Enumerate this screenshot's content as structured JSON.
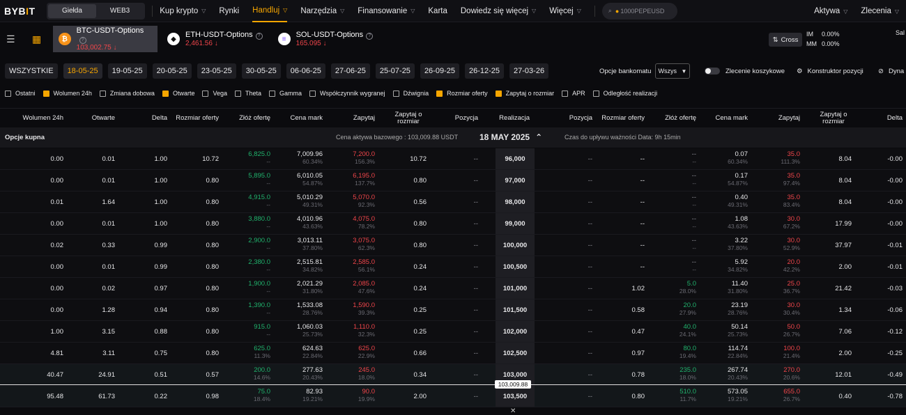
{
  "nav": {
    "logo_a": "BYB",
    "logo_i": "I",
    "logo_t": "T",
    "seg": [
      "Giełda",
      "WEB3"
    ],
    "items": [
      "Kup krypto",
      "Rynki",
      "Handluj",
      "Narzędzia",
      "Finansowanie",
      "Karta",
      "Dowiedz się więcej",
      "Więcej"
    ],
    "search": "1000PEPEUSD",
    "right": [
      "Aktywa",
      "Zlecenia"
    ]
  },
  "assets": [
    {
      "name": "BTC-USDT-Options",
      "price": "103,002.75",
      "icon": "₿",
      "color": "#f7931a"
    },
    {
      "name": "ETH-USDT-Options",
      "price": "2,461.56",
      "icon": "◆",
      "color": "#ffffff"
    },
    {
      "name": "SOL-USDT-Options",
      "price": "165.095",
      "icon": "≡",
      "color": "#ffffff"
    }
  ],
  "account": {
    "cross": "Cross",
    "im": "IM",
    "im_val": "0.00%",
    "mm": "MM",
    "mm_val": "0.00%",
    "right": "Sal"
  },
  "dates": [
    "WSZYSTKIE",
    "18-05-25",
    "19-05-25",
    "20-05-25",
    "23-05-25",
    "30-05-25",
    "06-06-25",
    "27-06-25",
    "25-07-25",
    "26-09-25",
    "26-12-25",
    "27-03-26"
  ],
  "bank": {
    "label": "Opcje bankomatu",
    "value": "Wszys"
  },
  "controls": {
    "basket": "Zlecenie koszykowe",
    "builder": "Konstruktor pozycji",
    "dyna": "Dyna"
  },
  "checkboxes": [
    {
      "label": "Ostatni",
      "on": false
    },
    {
      "label": "Wolumen 24h",
      "on": true
    },
    {
      "label": "Zmiana dobowa",
      "on": false
    },
    {
      "label": "Otwarte",
      "on": true
    },
    {
      "label": "Vega",
      "on": false
    },
    {
      "label": "Theta",
      "on": false
    },
    {
      "label": "Gamma",
      "on": false
    },
    {
      "label": "Współczynnik wygranej",
      "on": false
    },
    {
      "label": "Dźwignia",
      "on": false
    },
    {
      "label": "Rozmiar oferty",
      "on": true
    },
    {
      "label": "Zapytaj o rozmiar",
      "on": true
    },
    {
      "label": "APR",
      "on": false
    },
    {
      "label": "Odległość realizacji",
      "on": false
    }
  ],
  "headers": {
    "vol": "Wolumen 24h",
    "oi": "Otwarte",
    "delta": "Delta",
    "bidsize": "Rozmiar oferty",
    "bid": "Złóż ofertę",
    "mark": "Cena mark",
    "ask": "Zapytaj",
    "asksize": "Zapytaj o rozmiar",
    "pos": "Pozycja",
    "strike": "Realizacja",
    "ppos": "Pozycja",
    "pbidsize": "Rozmiar oferty",
    "pbid": "Złóż ofertę",
    "pmark": "Cena mark",
    "pask": "Zapytaj",
    "pasksize": "Zapytaj o rozmiar",
    "pdelta": "Delta"
  },
  "section": {
    "calls": "Opcje kupna",
    "underlying": "Cena aktywa bazowego : 103,009.88 USDT",
    "date": "18 MAY 2025",
    "expiry": "Czas do upływu ważności Data:  9h 15min"
  },
  "current_price": "103,009.88",
  "rows": [
    {
      "vol": "0.00",
      "oi": "0.01",
      "delta": "1.00",
      "bidsize": "10.72",
      "bid": "6,825.0",
      "bidiv": "--",
      "mark": "7,009.96",
      "markiv": "60.34%",
      "ask": "7,200.0",
      "askiv": "156.3%",
      "asksize": "10.72",
      "pos": "--",
      "strike": "96,000",
      "ppos": "--",
      "pbidsize": "--",
      "pbid": "--",
      "pbidiv": "--",
      "pmark": "0.07",
      "pmarkiv": "60.34%",
      "pask": "35.0",
      "paskiv": "111.3%",
      "pasksize": "8.04",
      "pdelta": "-0.00"
    },
    {
      "vol": "0.00",
      "oi": "0.01",
      "delta": "1.00",
      "bidsize": "0.80",
      "bid": "5,895.0",
      "bidiv": "--",
      "mark": "6,010.05",
      "markiv": "54.87%",
      "ask": "6,195.0",
      "askiv": "137.7%",
      "asksize": "0.80",
      "pos": "--",
      "strike": "97,000",
      "ppos": "--",
      "pbidsize": "--",
      "pbid": "--",
      "pbidiv": "--",
      "pmark": "0.17",
      "pmarkiv": "54.87%",
      "pask": "35.0",
      "paskiv": "97.4%",
      "pasksize": "8.04",
      "pdelta": "-0.00"
    },
    {
      "vol": "0.01",
      "oi": "1.64",
      "delta": "1.00",
      "bidsize": "0.80",
      "bid": "4,915.0",
      "bidiv": "--",
      "mark": "5,010.29",
      "markiv": "49.31%",
      "ask": "5,070.0",
      "askiv": "92.3%",
      "asksize": "0.56",
      "pos": "--",
      "strike": "98,000",
      "ppos": "--",
      "pbidsize": "--",
      "pbid": "--",
      "pbidiv": "--",
      "pmark": "0.40",
      "pmarkiv": "49.31%",
      "pask": "35.0",
      "paskiv": "83.4%",
      "pasksize": "8.04",
      "pdelta": "-0.00"
    },
    {
      "vol": "0.00",
      "oi": "0.01",
      "delta": "1.00",
      "bidsize": "0.80",
      "bid": "3,880.0",
      "bidiv": "--",
      "mark": "4,010.96",
      "markiv": "43.63%",
      "ask": "4,075.0",
      "askiv": "78.2%",
      "asksize": "0.80",
      "pos": "--",
      "strike": "99,000",
      "ppos": "--",
      "pbidsize": "--",
      "pbid": "--",
      "pbidiv": "--",
      "pmark": "1.08",
      "pmarkiv": "43.63%",
      "pask": "30.0",
      "paskiv": "67.2%",
      "pasksize": "17.99",
      "pdelta": "-0.00"
    },
    {
      "vol": "0.02",
      "oi": "0.33",
      "delta": "0.99",
      "bidsize": "0.80",
      "bid": "2,900.0",
      "bidiv": "--",
      "mark": "3,013.11",
      "markiv": "37.80%",
      "ask": "3,075.0",
      "askiv": "62.3%",
      "asksize": "0.80",
      "pos": "--",
      "strike": "100,000",
      "ppos": "--",
      "pbidsize": "--",
      "pbid": "--",
      "pbidiv": "--",
      "pmark": "3.22",
      "pmarkiv": "37.80%",
      "pask": "30.0",
      "paskiv": "52.9%",
      "pasksize": "37.97",
      "pdelta": "-0.01"
    },
    {
      "vol": "0.00",
      "oi": "0.01",
      "delta": "0.99",
      "bidsize": "0.80",
      "bid": "2,380.0",
      "bidiv": "--",
      "mark": "2,515.81",
      "markiv": "34.82%",
      "ask": "2,585.0",
      "askiv": "56.1%",
      "asksize": "0.24",
      "pos": "--",
      "strike": "100,500",
      "ppos": "--",
      "pbidsize": "--",
      "pbid": "--",
      "pbidiv": "--",
      "pmark": "5.92",
      "pmarkiv": "34.82%",
      "pask": "20.0",
      "paskiv": "42.2%",
      "pasksize": "2.00",
      "pdelta": "-0.01"
    },
    {
      "vol": "0.00",
      "oi": "0.02",
      "delta": "0.97",
      "bidsize": "0.80",
      "bid": "1,900.0",
      "bidiv": "--",
      "mark": "2,021.29",
      "markiv": "31.80%",
      "ask": "2,085.0",
      "askiv": "47.6%",
      "asksize": "0.24",
      "pos": "--",
      "strike": "101,000",
      "ppos": "--",
      "pbidsize": "1.02",
      "pbid": "5.0",
      "pbidiv": "28.0%",
      "pmark": "11.40",
      "pmarkiv": "31.80%",
      "pask": "25.0",
      "paskiv": "36.7%",
      "pasksize": "21.42",
      "pdelta": "-0.03"
    },
    {
      "vol": "0.00",
      "oi": "1.28",
      "delta": "0.94",
      "bidsize": "0.80",
      "bid": "1,390.0",
      "bidiv": "--",
      "mark": "1,533.08",
      "markiv": "28.76%",
      "ask": "1,590.0",
      "askiv": "39.3%",
      "asksize": "0.25",
      "pos": "--",
      "strike": "101,500",
      "ppos": "--",
      "pbidsize": "0.58",
      "pbid": "20.0",
      "pbidiv": "27.9%",
      "pmark": "23.19",
      "pmarkiv": "28.76%",
      "pask": "30.0",
      "paskiv": "30.4%",
      "pasksize": "1.34",
      "pdelta": "-0.06"
    },
    {
      "vol": "1.00",
      "oi": "3.15",
      "delta": "0.88",
      "bidsize": "0.80",
      "bid": "915.0",
      "bidiv": "--",
      "mark": "1,060.03",
      "markiv": "25.73%",
      "ask": "1,110.0",
      "askiv": "32.3%",
      "asksize": "0.25",
      "pos": "--",
      "strike": "102,000",
      "ppos": "--",
      "pbidsize": "0.47",
      "pbid": "40.0",
      "pbidiv": "24.1%",
      "pmark": "50.14",
      "pmarkiv": "25.73%",
      "pask": "50.0",
      "paskiv": "26.7%",
      "pasksize": "7.06",
      "pdelta": "-0.12"
    },
    {
      "vol": "4.81",
      "oi": "3.11",
      "delta": "0.75",
      "bidsize": "0.80",
      "bid": "625.0",
      "bidiv": "11.3%",
      "mark": "624.63",
      "markiv": "22.84%",
      "ask": "625.0",
      "askiv": "22.9%",
      "asksize": "0.66",
      "pos": "--",
      "strike": "102,500",
      "ppos": "--",
      "pbidsize": "0.97",
      "pbid": "80.0",
      "pbidiv": "19.4%",
      "pmark": "114.74",
      "pmarkiv": "22.84%",
      "pask": "100.0",
      "paskiv": "21.4%",
      "pasksize": "2.00",
      "pdelta": "-0.25"
    },
    {
      "vol": "40.47",
      "oi": "24.91",
      "delta": "0.51",
      "bidsize": "0.57",
      "bid": "200.0",
      "bidiv": "14.6%",
      "mark": "277.63",
      "markiv": "20.43%",
      "ask": "245.0",
      "askiv": "18.0%",
      "asksize": "0.34",
      "pos": "--",
      "strike": "103,000",
      "ppos": "--",
      "pbidsize": "0.78",
      "pbid": "235.0",
      "pbidiv": "18.0%",
      "pmark": "267.74",
      "pmarkiv": "20.43%",
      "pask": "270.0",
      "paskiv": "20.6%",
      "pasksize": "12.01",
      "pdelta": "-0.49"
    },
    {
      "vol": "95.48",
      "oi": "61.73",
      "delta": "0.22",
      "bidsize": "0.98",
      "bid": "75.0",
      "bidiv": "18.4%",
      "mark": "82.93",
      "markiv": "19.21%",
      "ask": "90.0",
      "askiv": "19.9%",
      "asksize": "2.00",
      "pos": "--",
      "strike": "103,500",
      "ppos": "--",
      "pbidsize": "0.80",
      "pbid": "510.0",
      "pbidiv": "11.7%",
      "pmark": "573.05",
      "pmarkiv": "19.21%",
      "pask": "655.0",
      "paskiv": "26.7%",
      "pasksize": "0.40",
      "pdelta": "-0.78"
    }
  ]
}
